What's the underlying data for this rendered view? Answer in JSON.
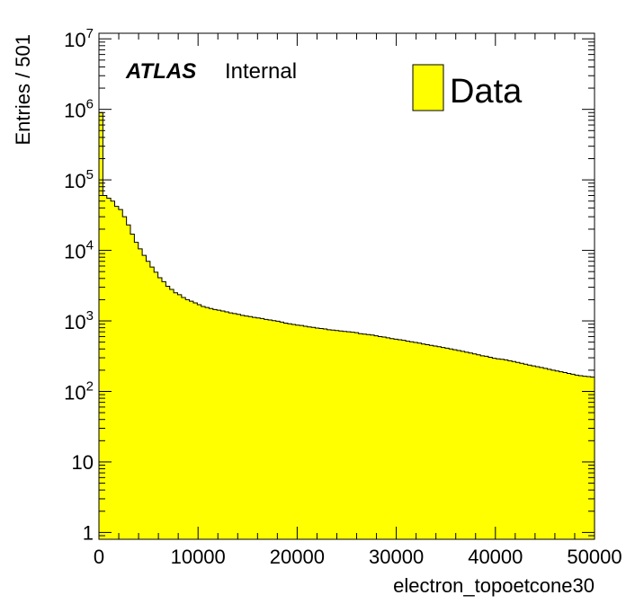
{
  "chart_data": {
    "type": "histogram",
    "style": "filled-step",
    "fill_color": "#ffff00",
    "line_color": "#000000",
    "ylabel": "Entries / 501",
    "xlabel": "electron_topoetcone30",
    "annotation": {
      "brand": "ATLAS",
      "status": "Internal"
    },
    "legend": [
      {
        "name": "Data",
        "color": "#ffff00",
        "position": "top-right"
      }
    ],
    "xlim": [
      0,
      50000
    ],
    "ylim": [
      0.8,
      12000000
    ],
    "ylog": true,
    "bin_width": 501,
    "xticks": [
      {
        "value": 0,
        "label": "0"
      },
      {
        "value": 10000,
        "label": "10000"
      },
      {
        "value": 20000,
        "label": "20000"
      },
      {
        "value": 30000,
        "label": "30000"
      },
      {
        "value": 40000,
        "label": "40000"
      },
      {
        "value": 50000,
        "label": "50000"
      }
    ],
    "yticks": [
      {
        "value": 1,
        "base": "1",
        "exp": ""
      },
      {
        "value": 10,
        "base": "10",
        "exp": ""
      },
      {
        "value": 100,
        "base": "10",
        "exp": "2"
      },
      {
        "value": 1000,
        "base": "10",
        "exp": "3"
      },
      {
        "value": 10000,
        "base": "10",
        "exp": "4"
      },
      {
        "value": 100000,
        "base": "10",
        "exp": "5"
      },
      {
        "value": 1000000,
        "base": "10",
        "exp": "6"
      },
      {
        "value": 10000000,
        "base": "10",
        "exp": "7"
      }
    ],
    "values": [
      900000,
      60000,
      55000,
      50000,
      42000,
      38000,
      30000,
      23000,
      17000,
      13000,
      10500,
      8500,
      7000,
      5800,
      4900,
      4100,
      3600,
      3100,
      2800,
      2500,
      2350,
      2150,
      2000,
      1900,
      1800,
      1700,
      1600,
      1550,
      1500,
      1450,
      1420,
      1380,
      1340,
      1300,
      1270,
      1240,
      1200,
      1170,
      1150,
      1120,
      1100,
      1080,
      1050,
      1030,
      1010,
      990,
      960,
      930,
      910,
      890,
      870,
      860,
      840,
      820,
      810,
      790,
      780,
      770,
      750,
      740,
      730,
      720,
      710,
      700,
      690,
      680,
      660,
      650,
      640,
      630,
      615,
      600,
      590,
      575,
      560,
      550,
      540,
      530,
      515,
      505,
      495,
      485,
      470,
      460,
      450,
      440,
      430,
      420,
      410,
      400,
      390,
      380,
      370,
      360,
      350,
      340,
      330,
      320,
      315,
      305,
      295,
      290,
      285,
      280,
      272,
      265,
      258,
      250,
      243,
      236,
      230,
      224,
      218,
      212,
      206,
      200,
      195,
      190,
      185,
      180,
      175,
      170,
      167,
      164,
      162,
      160
    ]
  }
}
